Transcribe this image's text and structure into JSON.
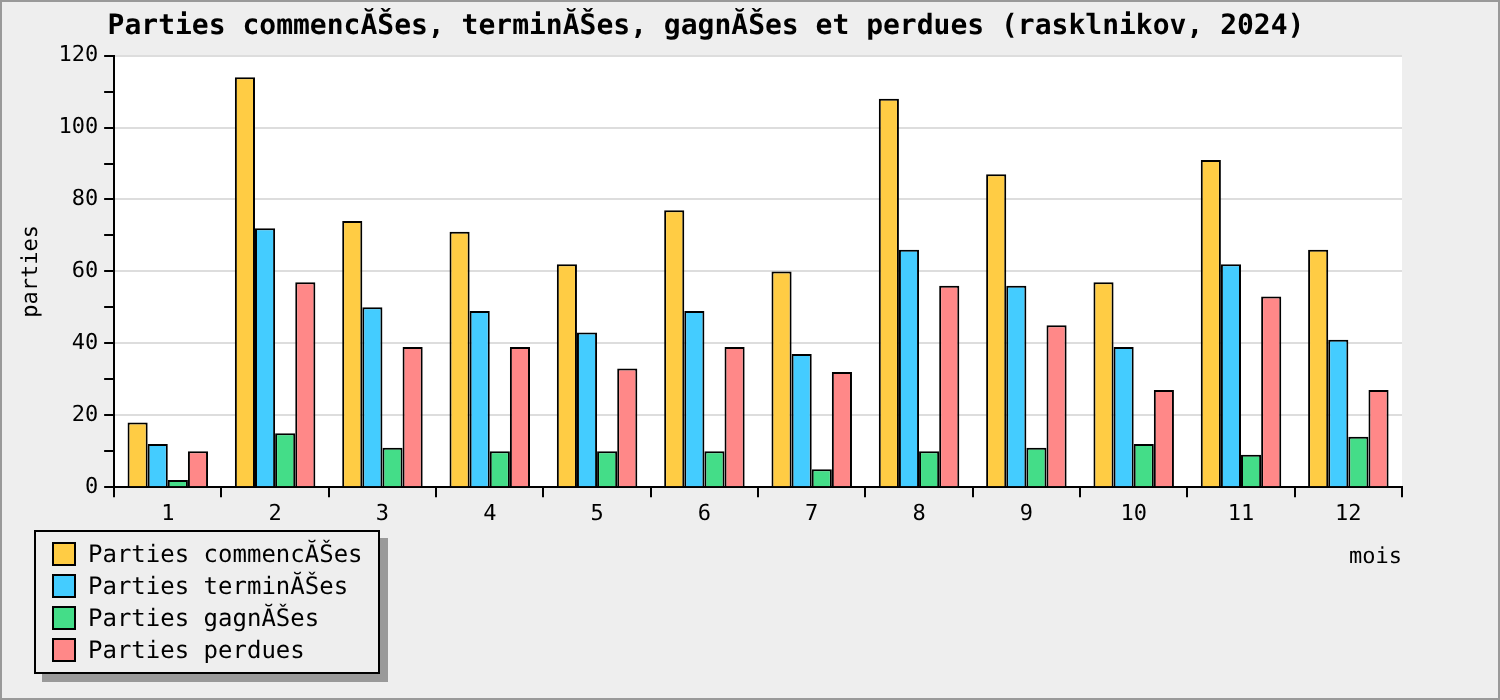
{
  "chart_data": {
    "type": "bar",
    "title": "Parties commencĂŠes, terminĂŠes, gagnĂŠes et perdues (rasklnikov, 2024)",
    "xlabel": "mois",
    "ylabel": "parties",
    "categories": [
      "1",
      "2",
      "3",
      "4",
      "5",
      "6",
      "7",
      "8",
      "9",
      "10",
      "11",
      "12"
    ],
    "series": [
      {
        "name": "Parties commencĂŠes",
        "color": "#ffcc44",
        "values": [
          18,
          114,
          74,
          71,
          62,
          77,
          60,
          108,
          87,
          57,
          91,
          66
        ]
      },
      {
        "name": "Parties terminĂŠes",
        "color": "#44ccff",
        "values": [
          12,
          72,
          50,
          49,
          43,
          49,
          37,
          66,
          56,
          39,
          62,
          41
        ]
      },
      {
        "name": "Parties gagnĂŠes",
        "color": "#44dd88",
        "values": [
          2,
          15,
          11,
          10,
          10,
          10,
          5,
          10,
          11,
          12,
          9,
          14
        ]
      },
      {
        "name": "Parties perdues",
        "color": "#ff8888",
        "values": [
          10,
          57,
          39,
          39,
          33,
          39,
          32,
          56,
          45,
          27,
          53,
          27
        ]
      }
    ],
    "ylim": [
      0,
      120
    ],
    "yticks": [
      0,
      {
        "value": 10,
        "label": null
      },
      20,
      {
        "value": 30,
        "label": null
      },
      40,
      {
        "value": 50,
        "label": null
      },
      60,
      {
        "value": 70,
        "label": null
      },
      80,
      {
        "value": 90,
        "label": null
      },
      100,
      {
        "value": 110,
        "label": null
      },
      120
    ],
    "grid": "y",
    "legend": "bottom left"
  }
}
